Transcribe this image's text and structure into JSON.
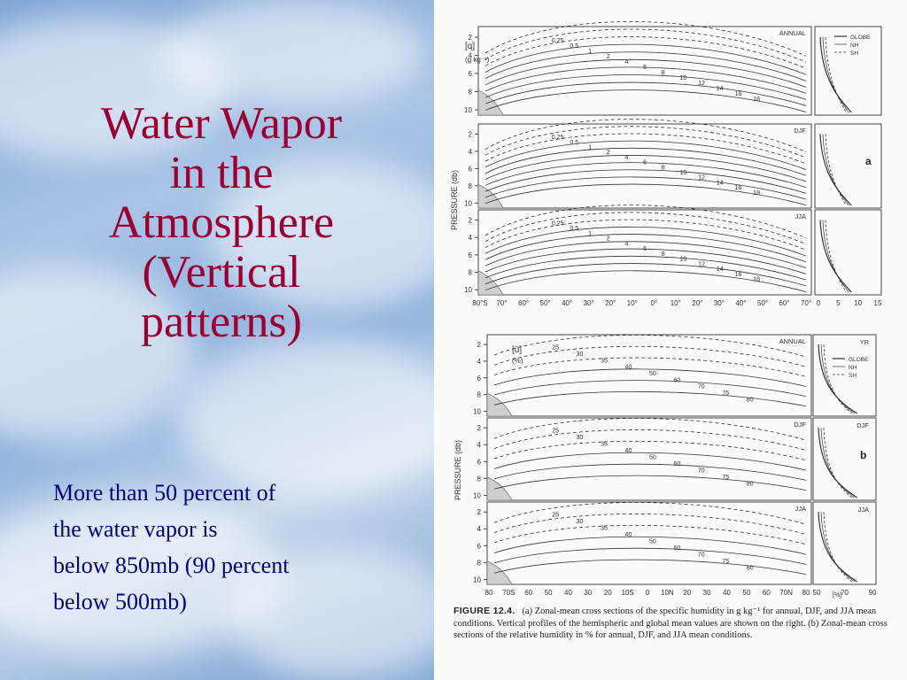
{
  "slide": {
    "title_lines": [
      "Water Wapor",
      "in the",
      "Atmosphere",
      "(Vertical",
      "patterns)"
    ],
    "body_lines": [
      "More than 50 percent of",
      "the water vapor is",
      "below 850mb (90 percent",
      "below 500mb)"
    ]
  },
  "figure": {
    "panel_a": {
      "unit": "[q]",
      "unit_sub": "(g kg⁻¹)",
      "ylabel": "PRESSURE (db)",
      "letter": "a",
      "panels": [
        "ANNUAL",
        "DJF",
        "JJA"
      ],
      "legend": [
        "GLOBE",
        "NH",
        "SH"
      ],
      "y_ticks": [
        "2",
        "4",
        "6",
        "8",
        "10"
      ],
      "x_ticks": [
        "80°S",
        "70°",
        "60°",
        "50°",
        "40°",
        "30°",
        "20°",
        "10°",
        "0°",
        "10°",
        "20°",
        "30°",
        "40°",
        "50°",
        "60°",
        "70°"
      ],
      "profile_ticks": [
        "0",
        "5",
        "10",
        "15"
      ],
      "contour_labels": [
        "0.25",
        "0.5",
        "1",
        "2",
        "4",
        "6",
        "8",
        "10",
        "12",
        "14",
        "16",
        "18"
      ]
    },
    "panel_b": {
      "unit": "[ū]",
      "unit_sub": "(%)",
      "ylabel": "PRESSURE (db)",
      "letter": "b",
      "panels": [
        "ANNUAL",
        "DJF",
        "JJA"
      ],
      "profile_panels": [
        "YR",
        "DJF",
        "JJA"
      ],
      "legend": [
        "GLOBE",
        "NH",
        "SH"
      ],
      "y_ticks": [
        "2",
        "4",
        "6",
        "8",
        "10"
      ],
      "x_ticks": [
        "80",
        "70S",
        "60",
        "50",
        "40",
        "30",
        "20",
        "10S",
        "0",
        "10N",
        "20",
        "30",
        "40",
        "50",
        "60",
        "70N",
        "80"
      ],
      "profile_ticks": [
        "50",
        "70",
        "90"
      ],
      "profile_unit": "[%]",
      "contour_labels": [
        "25",
        "30",
        "35",
        "40",
        "50",
        "60",
        "70",
        "75",
        "80"
      ]
    },
    "caption": {
      "label": "FIGURE 12.4.",
      "text": "(a) Zonal-mean cross sections of the specific humidity in g kg⁻¹ for annual, DJF, and JJA mean conditions. Vertical profiles of the hemispheric and global mean values are shown on the right. (b) Zonal-mean cross sections of the relative humidity in % for annual, DJF, and JJA mean conditions."
    }
  }
}
